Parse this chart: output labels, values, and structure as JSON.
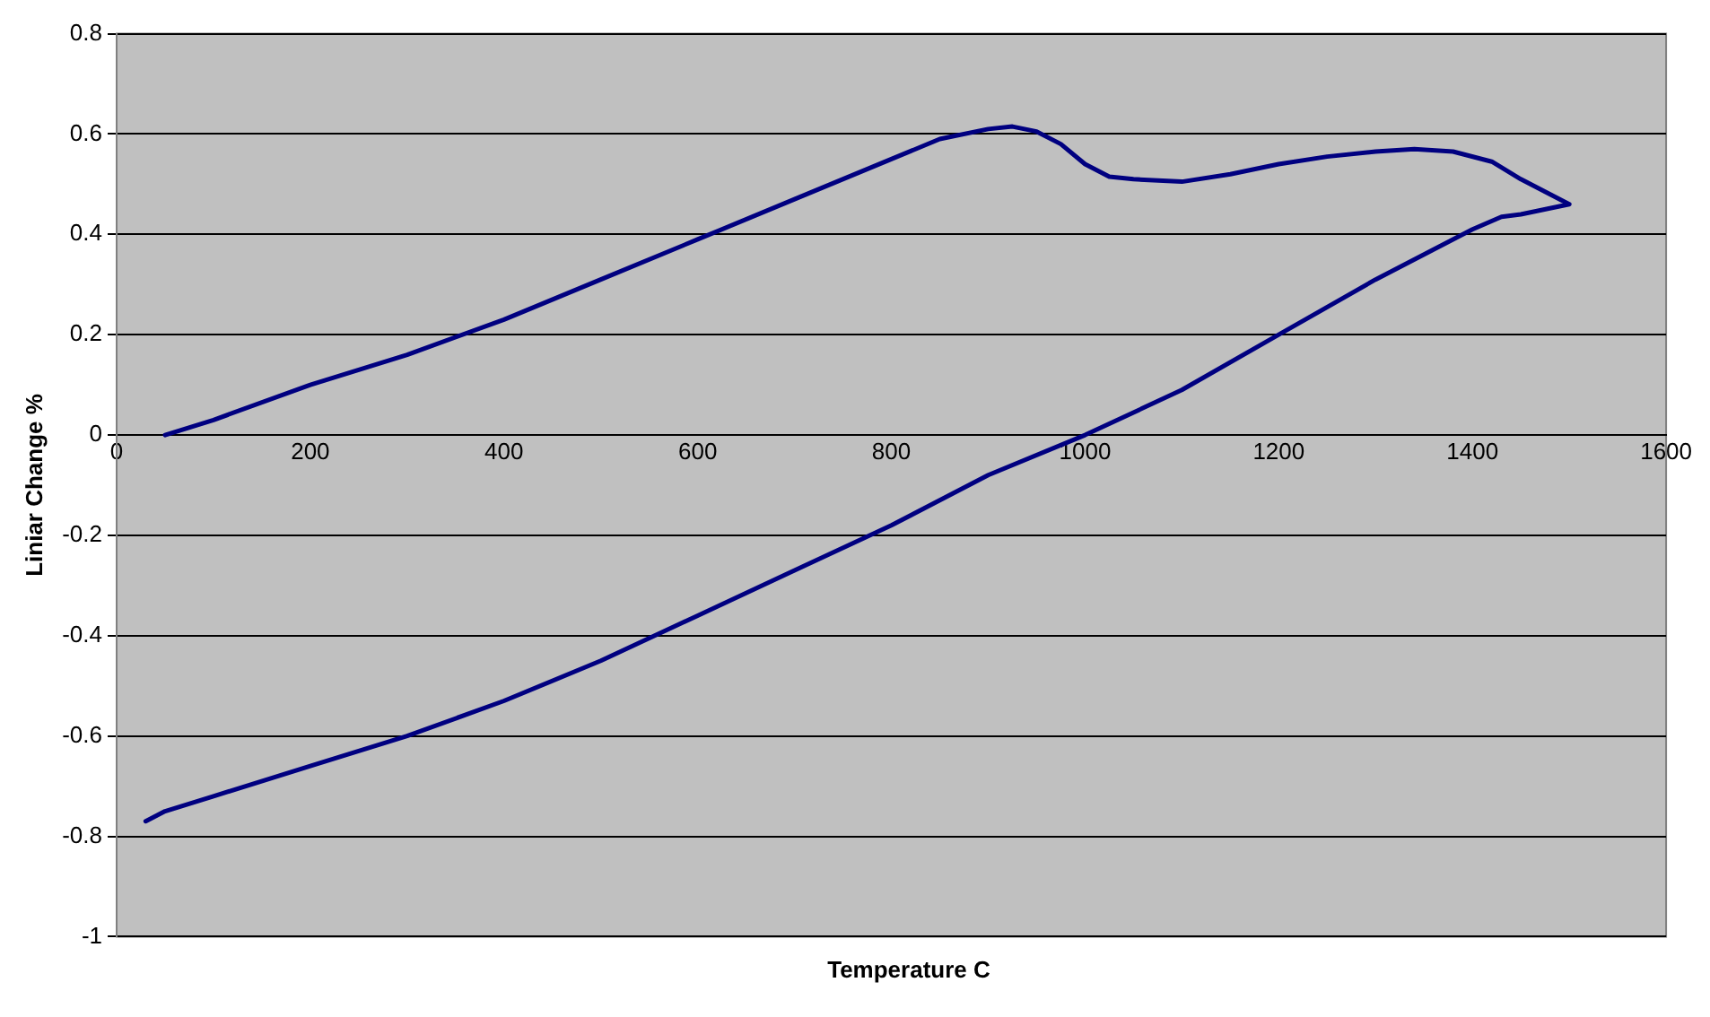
{
  "chart_data": {
    "type": "line",
    "xlabel": "Temperature C",
    "ylabel": "Liniar Change %",
    "xlim": [
      0,
      1600
    ],
    "xticks": [
      0,
      200,
      400,
      600,
      800,
      1000,
      1200,
      1400,
      1600
    ],
    "ylim": [
      -1,
      0.8
    ],
    "yticks": [
      -1,
      -0.8,
      -0.6,
      -0.4,
      -0.2,
      0,
      0.2,
      0.4,
      0.6,
      0.8
    ],
    "grid": "y",
    "legend": false,
    "marker": "none",
    "line_style": "solid",
    "series": [
      {
        "color": "#000080",
        "x": [
          50,
          100,
          200,
          300,
          400,
          500,
          600,
          700,
          800,
          850,
          900,
          925,
          950,
          975,
          1000,
          1025,
          1050,
          1100,
          1150,
          1200,
          1250,
          1300,
          1340,
          1380,
          1420,
          1450,
          1500,
          1450,
          1430,
          1400,
          1350,
          1300,
          1200,
          1100,
          1000,
          900,
          800,
          700,
          600,
          500,
          400,
          300,
          200,
          100,
          50,
          30
        ],
        "values": [
          0,
          0.03,
          0.1,
          0.16,
          0.23,
          0.31,
          0.39,
          0.47,
          0.55,
          0.59,
          0.61,
          0.615,
          0.605,
          0.58,
          0.54,
          0.515,
          0.51,
          0.505,
          0.52,
          0.54,
          0.555,
          0.565,
          0.57,
          0.565,
          0.545,
          0.51,
          0.46,
          0.44,
          0.435,
          0.41,
          0.36,
          0.31,
          0.2,
          0.09,
          0,
          -0.08,
          -0.18,
          -0.27,
          -0.36,
          -0.45,
          -0.53,
          -0.6,
          -0.66,
          -0.72,
          -0.75,
          -0.77
        ]
      }
    ]
  }
}
